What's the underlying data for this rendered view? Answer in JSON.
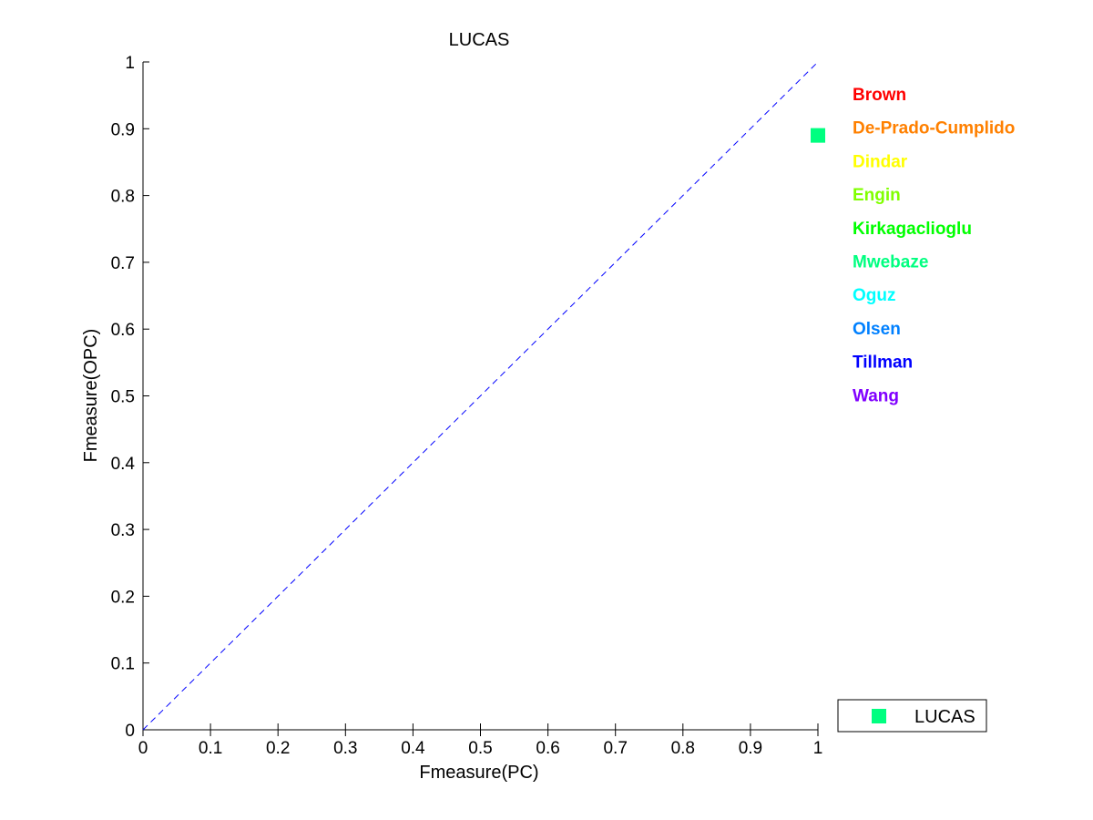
{
  "chart_data": {
    "type": "scatter",
    "title": "LUCAS",
    "xlabel": "Fmeasure(PC)",
    "ylabel": "Fmeasure(OPC)",
    "xlim": [
      0,
      1
    ],
    "ylim": [
      0,
      1
    ],
    "xticks": [
      "0",
      "0.1",
      "0.2",
      "0.3",
      "0.4",
      "0.5",
      "0.6",
      "0.7",
      "0.8",
      "0.9",
      "1"
    ],
    "yticks": [
      "0",
      "0.1",
      "0.2",
      "0.3",
      "0.4",
      "0.5",
      "0.6",
      "0.7",
      "0.8",
      "0.9",
      "1"
    ],
    "grid": false,
    "reference_line": {
      "style": "dashed",
      "color": "#0000ff",
      "from": [
        0,
        0
      ],
      "to": [
        1,
        1
      ]
    },
    "series": [
      {
        "name": "LUCAS",
        "marker": "square",
        "color": "#00ff80",
        "points": [
          {
            "x": 1.0,
            "y": 0.89
          }
        ]
      }
    ],
    "legend": {
      "position": "bottom-right",
      "entries": [
        "LUCAS"
      ]
    },
    "participants": [
      {
        "name": "Brown",
        "color": "#ff0000"
      },
      {
        "name": "De-Prado-Cumplido",
        "color": "#ff8000"
      },
      {
        "name": "Dindar",
        "color": "#ffff00"
      },
      {
        "name": "Engin",
        "color": "#80ff00"
      },
      {
        "name": "Kirkagaclioglu",
        "color": "#00ff00"
      },
      {
        "name": "Mwebaze",
        "color": "#00ff80"
      },
      {
        "name": "Oguz",
        "color": "#00ffff"
      },
      {
        "name": "Olsen",
        "color": "#0080ff"
      },
      {
        "name": "Tillman",
        "color": "#0000ff"
      },
      {
        "name": "Wang",
        "color": "#8000ff"
      }
    ]
  }
}
